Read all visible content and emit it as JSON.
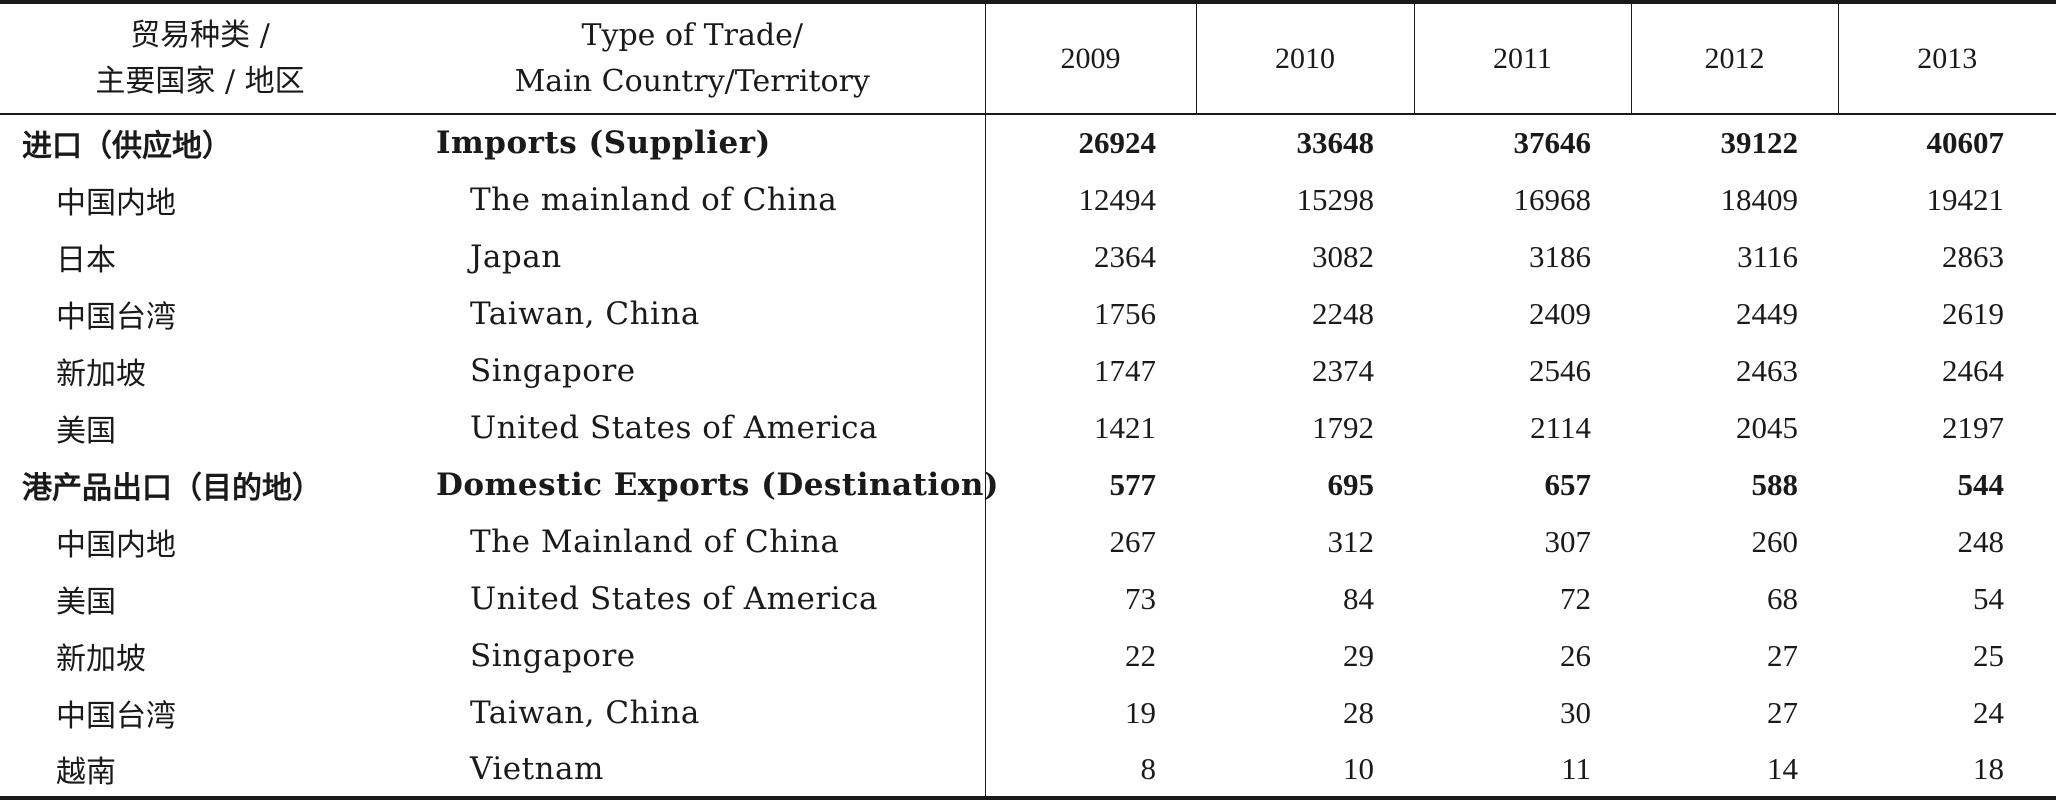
{
  "header": {
    "cn_line1": "贸易种类 /",
    "cn_line2": "主要国家 / 地区",
    "en_line1": "Type of Trade/",
    "en_line2": "Main Country/Territory",
    "years": [
      "2009",
      "2010",
      "2011",
      "2012",
      "2013"
    ]
  },
  "rows": [
    {
      "cn": "进口（供应地）",
      "en": "Imports (Supplier)",
      "values": [
        "26924",
        "33648",
        "37646",
        "39122",
        "40607"
      ]
    },
    {
      "cn": "中国内地",
      "en": "The mainland of China",
      "values": [
        "12494",
        "15298",
        "16968",
        "18409",
        "19421"
      ]
    },
    {
      "cn": "日本",
      "en": "Japan",
      "values": [
        "2364",
        "3082",
        "3186",
        "3116",
        "2863"
      ]
    },
    {
      "cn": "中国台湾",
      "en": "Taiwan, China",
      "values": [
        "1756",
        "2248",
        "2409",
        "2449",
        "2619"
      ]
    },
    {
      "cn": "新加坡",
      "en": "Singapore",
      "values": [
        "1747",
        "2374",
        "2546",
        "2463",
        "2464"
      ]
    },
    {
      "cn": "美国",
      "en": "United States of America",
      "values": [
        "1421",
        "1792",
        "2114",
        "2045",
        "2197"
      ]
    },
    {
      "cn": "港产品出口（目的地）",
      "en": "Domestic Exports (Destination)",
      "values": [
        "577",
        "695",
        "657",
        "588",
        "544"
      ]
    },
    {
      "cn": "中国内地",
      "en": "The Mainland of China",
      "values": [
        "267",
        "312",
        "307",
        "260",
        "248"
      ]
    },
    {
      "cn": "美国",
      "en": "United States of America",
      "values": [
        "73",
        "84",
        "72",
        "68",
        "54"
      ]
    },
    {
      "cn": "新加坡",
      "en": "Singapore",
      "values": [
        "22",
        "29",
        "26",
        "27",
        "25"
      ]
    },
    {
      "cn": "中国台湾",
      "en": "Taiwan, China",
      "values": [
        "19",
        "28",
        "30",
        "27",
        "24"
      ]
    },
    {
      "cn": "越南",
      "en": "Vietnam",
      "values": [
        "8",
        "10",
        "11",
        "14",
        "18"
      ]
    }
  ]
}
